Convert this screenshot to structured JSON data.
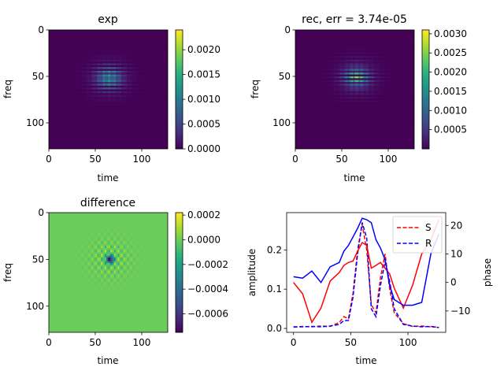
{
  "colors": {
    "viridis_low": "#440154",
    "viridis_mid": "#21918c",
    "viridis_high": "#fde725",
    "line_red": "#ff0000",
    "line_blue": "#0000ff"
  },
  "chart_data": [
    {
      "type": "heatmap",
      "title": "exp",
      "xlabel": "time",
      "ylabel": "freq",
      "xticks": [
        0,
        50,
        100
      ],
      "yticks": [
        0,
        50,
        100
      ],
      "xlim": [
        0,
        128
      ],
      "ylim": [
        128,
        0
      ],
      "colorbar": {
        "min": 0.0,
        "max": 0.0024,
        "ticks": [
          0.0,
          0.0005,
          0.001,
          0.0015,
          0.002
        ],
        "tick_labels": [
          "0.0000",
          "0.0005",
          "0.0010",
          "0.0015",
          "0.0020"
        ]
      },
      "pattern": {
        "center_time": 65,
        "center_freq": 52,
        "peak": 0.0024
      }
    },
    {
      "type": "heatmap",
      "title": "rec, err = 3.74e-05",
      "xlabel": "time",
      "ylabel": "freq",
      "xticks": [
        0,
        50,
        100
      ],
      "yticks": [
        0,
        50,
        100
      ],
      "xlim": [
        0,
        128
      ],
      "ylim": [
        128,
        0
      ],
      "colorbar": {
        "min": 0.0,
        "max": 0.0031,
        "ticks": [
          0.0005,
          0.001,
          0.0015,
          0.002,
          0.0025,
          0.003
        ],
        "tick_labels": [
          "0.0005",
          "0.0010",
          "0.0015",
          "0.0020",
          "0.0025",
          "0.0030"
        ]
      },
      "pattern": {
        "center_time": 66,
        "center_freq": 51,
        "peak": 0.0031
      }
    },
    {
      "type": "heatmap",
      "title": "difference",
      "xlabel": "time",
      "ylabel": "freq",
      "xticks": [
        0,
        50,
        100
      ],
      "yticks": [
        0,
        50,
        100
      ],
      "xlim": [
        0,
        128
      ],
      "ylim": [
        128,
        0
      ],
      "colorbar": {
        "min": -0.00075,
        "max": 0.00022,
        "ticks": [
          -0.0006,
          -0.0004,
          -0.0002,
          0.0,
          0.0002
        ],
        "tick_labels": [
          "−0.0006",
          "−0.0004",
          "−0.0002",
          "0.0000",
          "0.0002"
        ]
      },
      "pattern": {
        "center_time": 66,
        "center_freq": 50,
        "background": 0.0
      }
    },
    {
      "type": "line",
      "xlabel": "time",
      "ylabel": "amplitude",
      "y2label": "phase",
      "xlim": [
        -6,
        133
      ],
      "ylim": [
        -0.01,
        0.295
      ],
      "y2lim": [
        -17.5,
        24.5
      ],
      "xticks": [
        0,
        50,
        100
      ],
      "yticks": [
        0.0,
        0.1,
        0.2
      ],
      "ytick_labels": [
        "0.0",
        "0.1",
        "0.2"
      ],
      "y2ticks": [
        -10,
        0,
        10,
        20
      ],
      "y2tick_labels": [
        "−10",
        "0",
        "10",
        "20"
      ],
      "legend": {
        "placement": "top-right",
        "entries": [
          {
            "label": "S",
            "color": "#ff0000"
          },
          {
            "label": "R",
            "color": "#0000ff"
          }
        ]
      },
      "x": [
        0,
        8,
        16,
        24,
        32,
        40,
        44,
        48,
        52,
        56,
        60,
        64,
        68,
        72,
        76,
        80,
        84,
        88,
        96,
        104,
        112,
        120,
        127
      ],
      "series": [
        {
          "name": "S amplitude",
          "axis": "left",
          "style": "dashed",
          "color": "#ff0000",
          "values": [
            0.003,
            0.005,
            0.004,
            0.006,
            0.005,
            0.015,
            0.03,
            0.025,
            0.09,
            0.2,
            0.265,
            0.2,
            0.06,
            0.04,
            0.13,
            0.19,
            0.1,
            0.04,
            0.012,
            0.005,
            0.006,
            0.004,
            0.003
          ]
        },
        {
          "name": "R amplitude",
          "axis": "left",
          "style": "dashed",
          "color": "#0000ff",
          "values": [
            0.004,
            0.004,
            0.005,
            0.004,
            0.006,
            0.01,
            0.02,
            0.02,
            0.08,
            0.19,
            0.27,
            0.23,
            0.05,
            0.03,
            0.11,
            0.17,
            0.12,
            0.05,
            0.01,
            0.006,
            0.004,
            0.005,
            0.002
          ]
        },
        {
          "name": "S phase",
          "axis": "right",
          "style": "solid",
          "color": "#ff0000",
          "values": [
            0.0,
            -4.0,
            -14.0,
            -9.0,
            0.5,
            3.5,
            6.0,
            7.0,
            7.5,
            11.0,
            14.0,
            13.0,
            5.0,
            6.0,
            7.0,
            5.0,
            3.0,
            -2.0,
            -9.0,
            -1.0,
            10.0,
            15.0,
            22.0
          ]
        },
        {
          "name": "R phase",
          "axis": "right",
          "style": "solid",
          "color": "#0000ff",
          "values": [
            2.0,
            1.5,
            4.0,
            0.0,
            5.5,
            7.0,
            11.0,
            13.0,
            16.0,
            19.0,
            22.5,
            22.0,
            21.0,
            15.0,
            12.0,
            8.0,
            -1.0,
            -6.0,
            -8.0,
            -8.0,
            -7.0,
            10.0,
            17.0
          ]
        }
      ]
    }
  ]
}
